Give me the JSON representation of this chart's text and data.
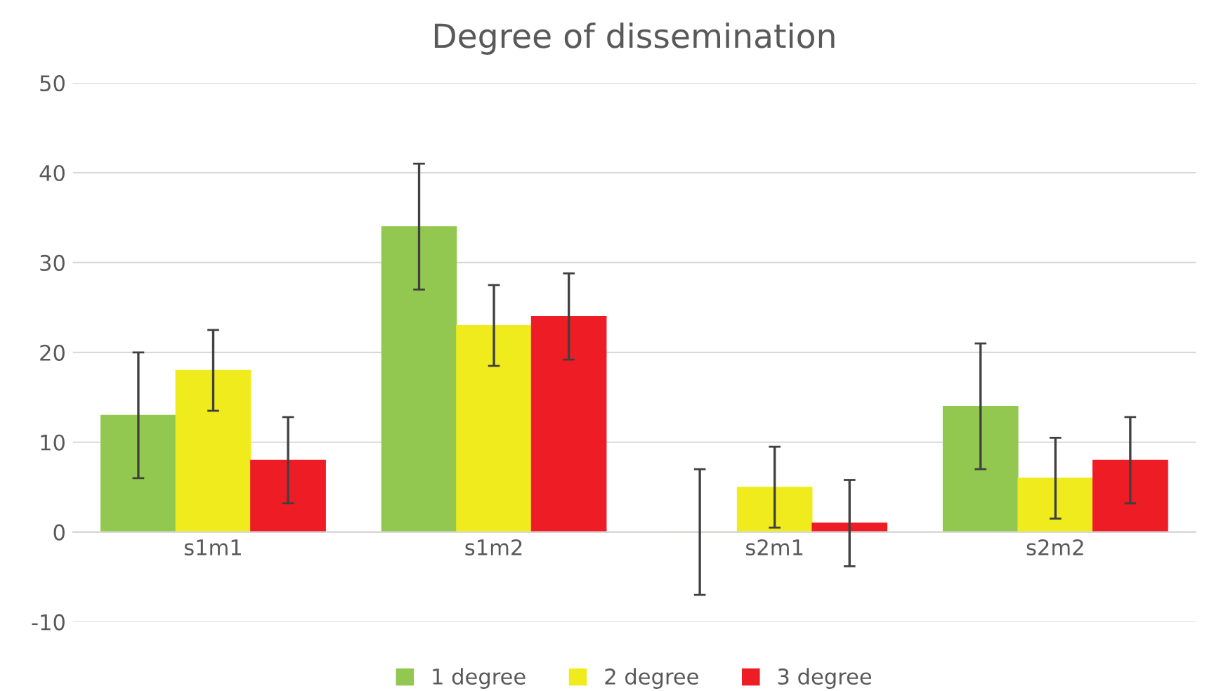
{
  "chart_data": {
    "type": "bar",
    "title": "Degree of dissemination",
    "categories": [
      "s1m1",
      "s1m2",
      "s2m1",
      "s2m2"
    ],
    "series": [
      {
        "name": "1 degree",
        "color": "#92c84f",
        "values": [
          13,
          34,
          0,
          14
        ],
        "errors": [
          7,
          7,
          7,
          7
        ]
      },
      {
        "name": "2 degree",
        "color": "#f0eb1c",
        "values": [
          18,
          23,
          5,
          6
        ],
        "errors": [
          4.5,
          4.5,
          4.5,
          4.5
        ]
      },
      {
        "name": "3 degree",
        "color": "#ee1c24",
        "values": [
          8,
          24,
          1,
          8
        ],
        "errors": [
          4.8,
          4.8,
          4.8,
          4.8
        ]
      }
    ],
    "ylim": [
      -10,
      50
    ],
    "yticks": [
      -10,
      0,
      10,
      20,
      30,
      40,
      50
    ],
    "grid": "y",
    "legend": "bottom"
  }
}
